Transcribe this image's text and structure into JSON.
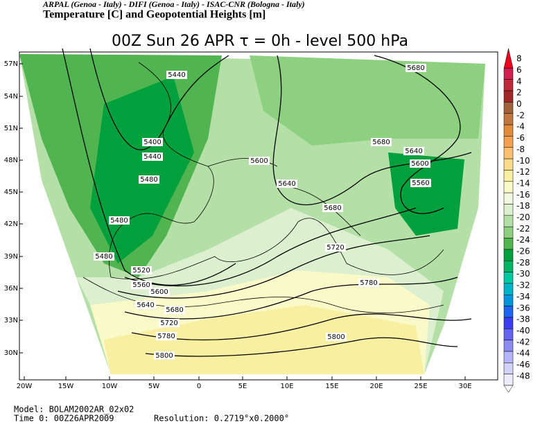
{
  "header": {
    "institutions": "ARPAL (Genoa - Italy)  -  DIFI (Genoa - Italy)  -  ISAC-CNR (Bologna - Italy)",
    "subtitle": "Temperature [C] and Geopotential Heights [m]",
    "title": "00Z Sun 26 APR  τ = 0h  -  level 500 hPa"
  },
  "map": {
    "lat_labels": [
      "57N",
      "54N",
      "51N",
      "48N",
      "45N",
      "42N",
      "39N",
      "36N",
      "33N",
      "30N"
    ],
    "lon_labels": [
      "20W",
      "15W",
      "10W",
      "5W",
      "0",
      "5E",
      "10E",
      "15E",
      "20E",
      "25E",
      "30E"
    ],
    "contour_labels": [
      "5440",
      "5400",
      "5440",
      "5480",
      "5480",
      "5480",
      "5520",
      "5560",
      "5600",
      "5640",
      "5680",
      "5720",
      "5780",
      "5800",
      "5600",
      "5640",
      "5680",
      "5720",
      "5780",
      "5800",
      "5680",
      "5640",
      "5600",
      "5560",
      "5680"
    ]
  },
  "colorbar": [
    {
      "label": "8",
      "color": "#e8001e"
    },
    {
      "label": "6",
      "color": "#d01e50"
    },
    {
      "label": "4",
      "color": "#c0283c"
    },
    {
      "label": "2",
      "color": "#a02828"
    },
    {
      "label": "0",
      "color": "#a0643c"
    },
    {
      "label": "-2",
      "color": "#c07840"
    },
    {
      "label": "-4",
      "color": "#e08c3c"
    },
    {
      "label": "-6",
      "color": "#f0a050"
    },
    {
      "label": "-8",
      "color": "#f8c070"
    },
    {
      "label": "-10",
      "color": "#f8dc8c"
    },
    {
      "label": "-12",
      "color": "#f8f0a0"
    },
    {
      "label": "-14",
      "color": "#fafac8"
    },
    {
      "label": "-16",
      "color": "#f0f8e0"
    },
    {
      "label": "-18",
      "color": "#dcf0d0"
    },
    {
      "label": "-20",
      "color": "#b4e0a8"
    },
    {
      "label": "-22",
      "color": "#8cd080"
    },
    {
      "label": "-24",
      "color": "#50b450"
    },
    {
      "label": "-26",
      "color": "#00a03c"
    },
    {
      "label": "-28",
      "color": "#00b464"
    },
    {
      "label": "-30",
      "color": "#00c8a0"
    },
    {
      "label": "-32",
      "color": "#00b4c8"
    },
    {
      "label": "-34",
      "color": "#0096dc"
    },
    {
      "label": "-36",
      "color": "#1e64f0"
    },
    {
      "label": "-38",
      "color": "#3c3cf0"
    },
    {
      "label": "-40",
      "color": "#6464f0"
    },
    {
      "label": "-42",
      "color": "#8c8cf0"
    },
    {
      "label": "-44",
      "color": "#b4b4f8"
    },
    {
      "label": "-46",
      "color": "#d2d2f8"
    },
    {
      "label": "-48",
      "color": "#ebebfa"
    }
  ],
  "footer": {
    "model": "Model: BOLAM2002AR_02x02",
    "time": "Time 0: 00Z26APR2009",
    "resolution": "Resolution: 0.2719°x0.2000°"
  }
}
